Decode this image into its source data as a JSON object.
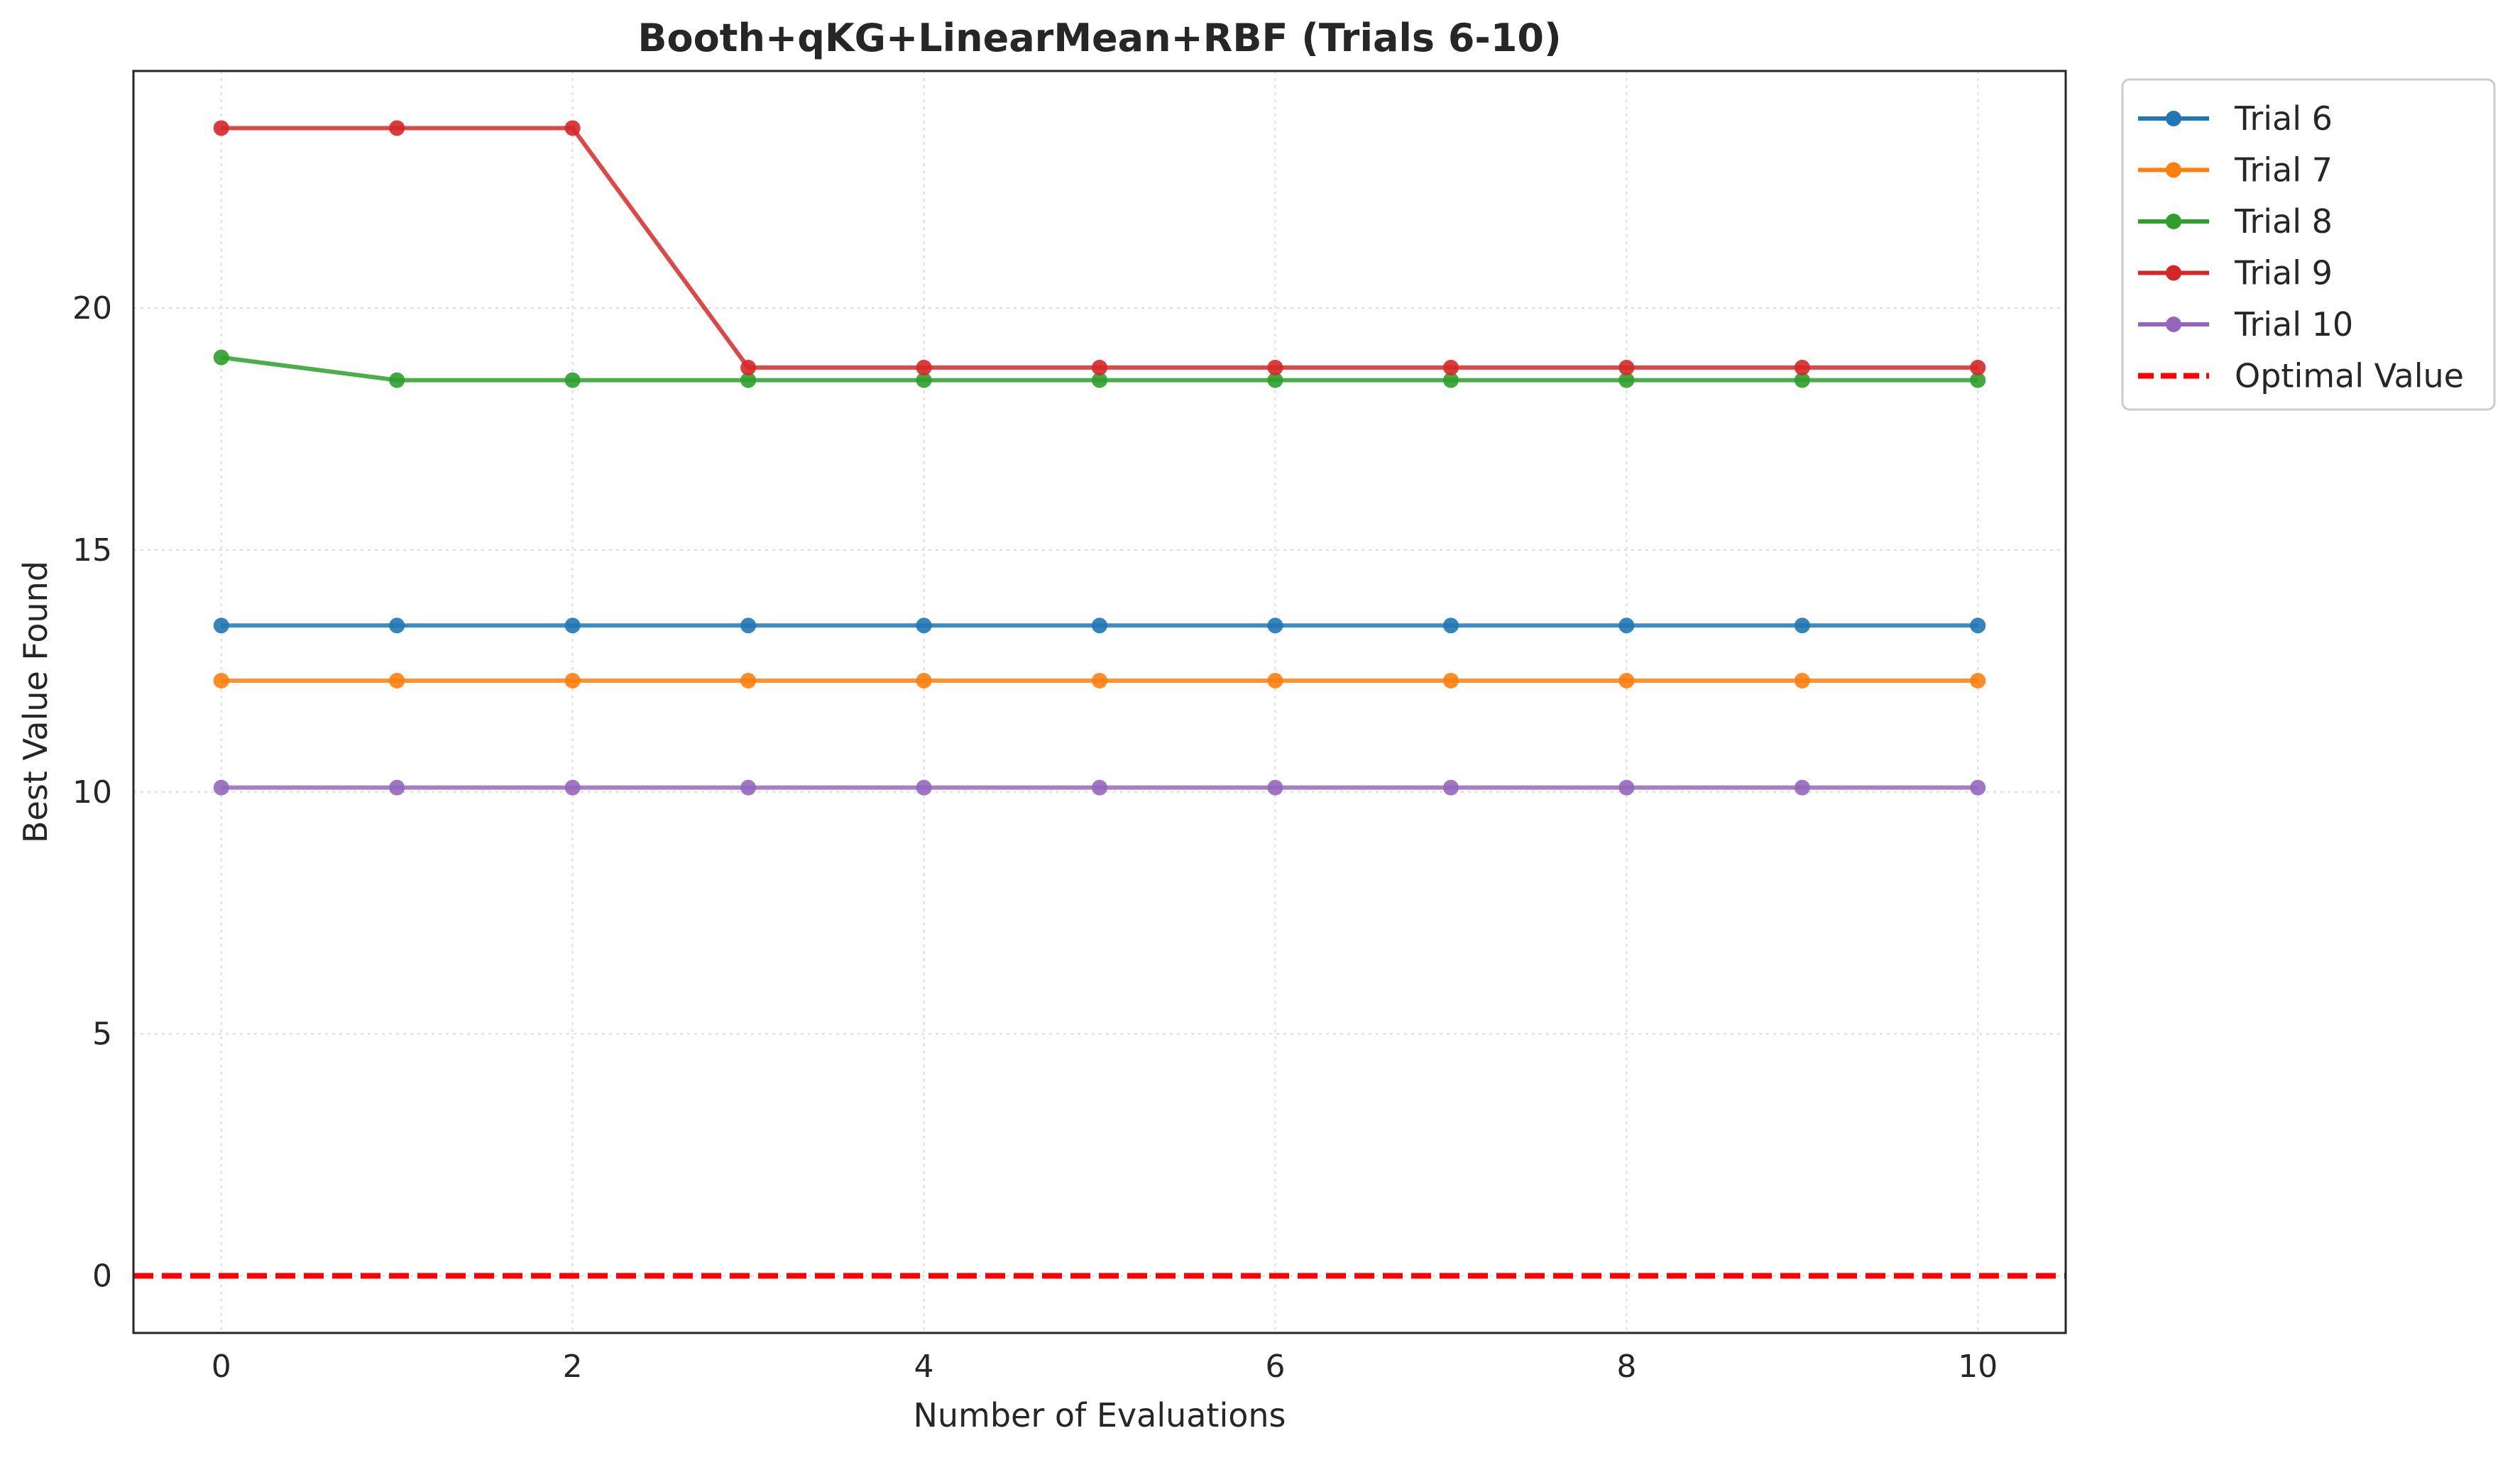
{
  "chart_data": {
    "type": "line",
    "title": "Booth+qKG+LinearMean+RBF (Trials 6-10)",
    "xlabel": "Number of Evaluations",
    "ylabel": "Best Value Found",
    "xlim": [
      -0.5,
      10.5
    ],
    "ylim": [
      -1.18,
      24.9
    ],
    "xticks": [
      0,
      2,
      4,
      6,
      8,
      10
    ],
    "yticks": [
      0,
      5,
      10,
      15,
      20
    ],
    "grid": true,
    "legend_position": "outside-top-right",
    "x": [
      0,
      1,
      2,
      3,
      4,
      5,
      6,
      7,
      8,
      9,
      10
    ],
    "series": [
      {
        "name": "Trial 6",
        "color": "#1f77b4",
        "values": [
          13.44,
          13.44,
          13.44,
          13.44,
          13.44,
          13.44,
          13.44,
          13.44,
          13.44,
          13.44,
          13.44
        ]
      },
      {
        "name": "Trial 7",
        "color": "#ff7f0e",
        "values": [
          12.3,
          12.3,
          12.3,
          12.3,
          12.3,
          12.3,
          12.3,
          12.3,
          12.3,
          12.3,
          12.3
        ]
      },
      {
        "name": "Trial 8",
        "color": "#2ca02c",
        "values": [
          18.98,
          18.51,
          18.51,
          18.51,
          18.51,
          18.51,
          18.51,
          18.51,
          18.51,
          18.51,
          18.51
        ]
      },
      {
        "name": "Trial 9",
        "color": "#d62728",
        "values": [
          23.72,
          23.72,
          23.72,
          18.77,
          18.77,
          18.77,
          18.77,
          18.77,
          18.77,
          18.77,
          18.77
        ]
      },
      {
        "name": "Trial 10",
        "color": "#9467bd",
        "values": [
          10.09,
          10.09,
          10.09,
          10.09,
          10.09,
          10.09,
          10.09,
          10.09,
          10.09,
          10.09,
          10.09
        ]
      }
    ],
    "reference_line": {
      "name": "Optimal Value",
      "y": 0,
      "color": "#ff0000",
      "style": "dashed"
    }
  }
}
